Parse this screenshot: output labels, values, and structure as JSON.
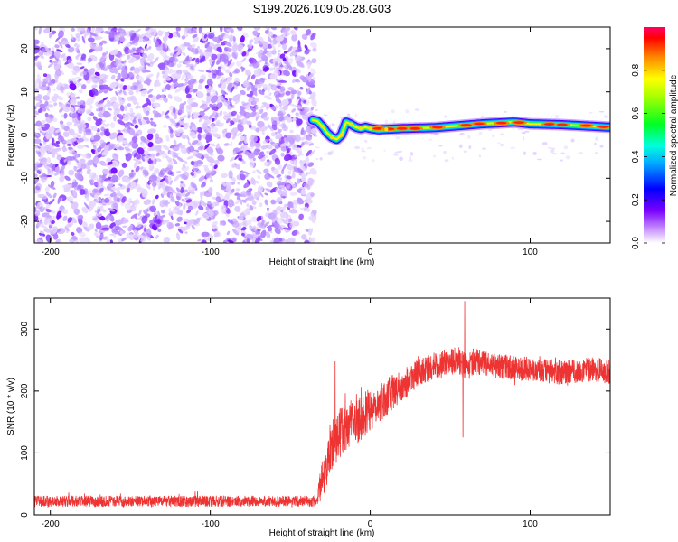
{
  "title": "S199.2026.109.05.28.G03",
  "chart_data": [
    {
      "type": "heatmap",
      "name": "spectrogram",
      "xlabel": "Height of straight line (km)",
      "ylabel": "Frequency (Hz)",
      "xlim": [
        -210,
        150
      ],
      "ylim": [
        -25,
        25
      ],
      "xticks": [
        -200,
        -100,
        0,
        100
      ],
      "yticks": [
        -20,
        -10,
        0,
        10,
        20
      ],
      "noise_region_x": [
        -210,
        -36
      ],
      "signal_ridge": {
        "x": [
          -36,
          -33,
          -30,
          -27,
          -24,
          -21,
          -18,
          -15,
          -12,
          -9,
          -6,
          -3,
          0,
          5,
          10,
          20,
          30,
          40,
          50,
          60,
          70,
          80,
          90,
          100,
          110,
          120,
          130,
          140,
          150
        ],
        "freq_hz": [
          3.5,
          3.2,
          2.0,
          0.5,
          -0.5,
          -1.0,
          0.0,
          3.0,
          2.5,
          1.8,
          1.5,
          1.8,
          1.5,
          1.2,
          1.3,
          1.5,
          1.6,
          1.7,
          2.0,
          2.3,
          2.6,
          2.8,
          3.0,
          2.6,
          2.5,
          2.4,
          2.2,
          2.0,
          1.8
        ]
      },
      "colorbar": {
        "label": "Normalized spectral amplitude",
        "range": [
          0,
          1
        ],
        "ticks": [
          "0.0",
          "0.2",
          "0.4",
          "0.6",
          "0.8"
        ]
      }
    },
    {
      "type": "line",
      "name": "snr",
      "xlabel": "Height of straight line (km)",
      "ylabel": "SNR (10 * v/v)",
      "xlim": [
        -210,
        150
      ],
      "ylim": [
        0,
        350
      ],
      "xticks": [
        -200,
        -100,
        0,
        100
      ],
      "yticks": [
        0,
        100,
        200,
        300
      ],
      "color": "#ee3333",
      "series": [
        {
          "name": "SNR",
          "x": [
            -210,
            -36,
            -33,
            -31,
            -22,
            -20,
            -10,
            0,
            10,
            15,
            20,
            30,
            40,
            50,
            55,
            60,
            70,
            80,
            100,
            120,
            140,
            150
          ],
          "mean": [
            22,
            22,
            25,
            50,
            120,
            130,
            150,
            170,
            190,
            200,
            210,
            230,
            240,
            248,
            250,
            240,
            245,
            240,
            235,
            230,
            235,
            230
          ],
          "spread": [
            9,
            9,
            10,
            30,
            40,
            40,
            40,
            35,
            30,
            28,
            26,
            22,
            22,
            22,
            22,
            22,
            20,
            20,
            20,
            20,
            20,
            20
          ]
        }
      ],
      "spikes": [
        {
          "x": -22,
          "value": 248
        },
        {
          "x": 59,
          "value": 345
        },
        {
          "x": 58,
          "value": 125
        },
        {
          "x": -210,
          "value": 5
        }
      ]
    }
  ]
}
